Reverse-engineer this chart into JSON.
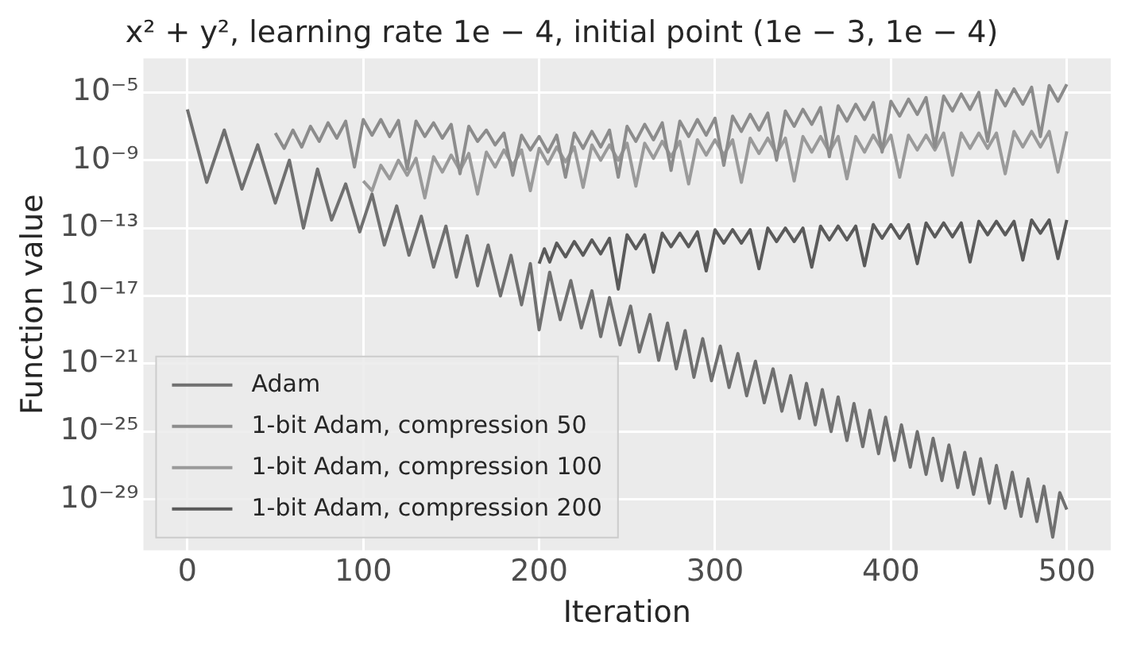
{
  "chart_data": {
    "type": "line",
    "title": "x² + y², learning rate 1e − 4, initial point (1e − 3, 1e − 4)",
    "xlabel": "Iteration",
    "ylabel": "Function value",
    "log": "y",
    "grid": true,
    "legend": "bottom left",
    "marker": "none",
    "line_style": "solid",
    "xlim": [
      -25,
      525
    ],
    "xticks": [
      0,
      100,
      200,
      300,
      400,
      500
    ],
    "ylim": [
      1e-32,
      0.001
    ],
    "yticks": [
      {
        "value": 1e-05,
        "label": "10⁻⁵"
      },
      {
        "value": 1e-09,
        "label": "10⁻⁹"
      },
      {
        "value": 1e-13,
        "label": "10⁻¹³"
      },
      {
        "value": 1e-17,
        "label": "10⁻¹⁷"
      },
      {
        "value": 1e-21,
        "label": "10⁻²¹"
      },
      {
        "value": 1e-25,
        "label": "10⁻²⁵"
      },
      {
        "value": 1e-29,
        "label": "10⁻²⁹"
      }
    ],
    "series": [
      {
        "name": "Adam",
        "color": "#707070",
        "x": [
          0,
          11,
          21,
          31,
          40,
          50,
          58,
          66,
          74,
          82,
          90,
          98,
          105,
          112,
          119,
          126,
          133,
          140,
          147,
          153,
          159,
          165,
          171,
          178,
          184,
          190,
          195,
          200,
          206,
          212,
          218,
          224,
          230,
          235,
          240,
          246,
          252,
          257,
          263,
          268,
          273,
          278,
          283,
          288,
          293,
          298,
          303,
          308,
          313,
          318,
          323,
          328,
          333,
          338,
          343,
          348,
          352,
          357,
          361,
          366,
          370,
          375,
          379,
          384,
          388,
          393,
          397,
          402,
          406,
          411,
          415,
          420,
          424,
          429,
          433,
          438,
          442,
          447,
          451,
          456,
          460,
          465,
          469,
          474,
          478,
          483,
          487,
          492,
          496,
          500
        ],
        "values": [
          1e-06,
          5e-11,
          6e-08,
          2e-11,
          8e-09,
          3e-12,
          1e-09,
          1e-13,
          3e-10,
          3e-13,
          4e-11,
          6e-14,
          1e-11,
          1e-14,
          2e-12,
          2.5e-15,
          5e-13,
          5e-16,
          1.3e-13,
          1.3e-16,
          3.5e-14,
          4e-17,
          1e-14,
          1e-17,
          2.5e-15,
          3e-18,
          8e-16,
          1e-19,
          2.5e-16,
          4e-19,
          8e-17,
          1.3e-19,
          2e-17,
          4e-20,
          8e-18,
          1.3e-20,
          2.5e-18,
          5e-21,
          8e-19,
          1.6e-21,
          2.5e-19,
          5e-22,
          9e-20,
          1.6e-22,
          3e-20,
          1e-22,
          1.1e-20,
          4e-23,
          4e-21,
          1.3e-23,
          1.4e-21,
          5e-24,
          5e-22,
          1.6e-24,
          2e-22,
          6e-25,
          7e-23,
          2.5e-25,
          3e-23,
          1e-25,
          1.1e-23,
          3e-26,
          4.5e-24,
          1.3e-26,
          1.8e-24,
          5e-27,
          7e-25,
          2e-27,
          2.5e-25,
          8e-28,
          1e-25,
          3e-28,
          4e-26,
          1.3e-28,
          1.6e-26,
          5e-29,
          6e-27,
          2e-29,
          2.5e-27,
          6e-30,
          1e-27,
          3e-30,
          4e-28,
          1e-30,
          1.6e-28,
          5e-31,
          6e-29,
          6e-32,
          2.5e-29,
          2.5e-30
        ]
      },
      {
        "name": "1-bit Adam, compression 50",
        "color": "#8c8c8c",
        "x": [
          50,
          55,
          60,
          65,
          70,
          75,
          80,
          85,
          90,
          95,
          100,
          105,
          110,
          115,
          120,
          125,
          130,
          135,
          140,
          145,
          150,
          155,
          160,
          165,
          170,
          175,
          180,
          185,
          190,
          195,
          200,
          205,
          210,
          215,
          220,
          225,
          230,
          235,
          240,
          245,
          250,
          255,
          260,
          265,
          270,
          275,
          280,
          285,
          290,
          295,
          300,
          305,
          310,
          315,
          320,
          325,
          330,
          335,
          340,
          345,
          350,
          355,
          360,
          365,
          370,
          375,
          380,
          385,
          390,
          395,
          400,
          405,
          410,
          415,
          420,
          425,
          430,
          435,
          440,
          445,
          450,
          455,
          460,
          465,
          470,
          475,
          480,
          485,
          490,
          495,
          500
        ],
        "values": [
          4e-08,
          5e-09,
          6e-08,
          6e-09,
          1e-07,
          1.3e-08,
          1.6e-07,
          2e-08,
          2e-07,
          4e-10,
          2.5e-07,
          3e-08,
          2.5e-07,
          2.5e-08,
          2.2e-07,
          3e-10,
          2e-07,
          2.5e-08,
          1.6e-07,
          2e-08,
          1.3e-07,
          1.6e-10,
          1e-07,
          1.3e-08,
          6e-08,
          8e-09,
          4e-08,
          1.3e-10,
          3e-08,
          4e-09,
          2.5e-08,
          3e-09,
          3e-08,
          1e-10,
          4e-08,
          5e-09,
          5e-08,
          6e-09,
          6e-08,
          1e-10,
          1e-07,
          1.3e-08,
          1.3e-07,
          1.6e-08,
          1.6e-07,
          2.5e-10,
          2e-07,
          2.5e-08,
          2.5e-07,
          3e-08,
          3e-07,
          5e-10,
          4e-07,
          5e-08,
          5e-07,
          6e-08,
          6e-07,
          1e-09,
          8e-07,
          1e-07,
          1e-06,
          1.3e-07,
          1.3e-06,
          1.6e-09,
          1.6e-06,
          2e-07,
          2e-06,
          2.5e-07,
          2.5e-06,
          3e-09,
          3e-06,
          4e-07,
          4e-06,
          5e-07,
          5e-06,
          6e-09,
          6e-06,
          8e-07,
          8e-06,
          1e-06,
          1e-05,
          1.3e-08,
          1.3e-05,
          1.6e-06,
          1.6e-05,
          2e-06,
          2e-05,
          2.5e-08,
          2.5e-05,
          3e-06,
          3e-05
        ]
      },
      {
        "name": "1-bit Adam, compression 100",
        "color": "#9a9a9a",
        "x": [
          100,
          105,
          110,
          115,
          120,
          125,
          130,
          135,
          140,
          145,
          150,
          155,
          160,
          165,
          170,
          175,
          180,
          185,
          190,
          195,
          200,
          205,
          210,
          215,
          220,
          225,
          230,
          235,
          240,
          245,
          250,
          255,
          260,
          265,
          270,
          275,
          280,
          285,
          290,
          295,
          300,
          305,
          310,
          315,
          320,
          325,
          330,
          335,
          340,
          345,
          350,
          355,
          360,
          365,
          370,
          375,
          380,
          385,
          390,
          395,
          400,
          405,
          410,
          415,
          420,
          425,
          430,
          435,
          440,
          445,
          450,
          455,
          460,
          465,
          470,
          475,
          480,
          485,
          490,
          495,
          500
        ],
        "values": [
          6e-11,
          1.6e-11,
          5e-10,
          8e-11,
          1e-09,
          1.3e-10,
          1.3e-09,
          6e-12,
          1.6e-09,
          2e-10,
          2e-09,
          2.5e-10,
          2.5e-09,
          1e-11,
          3e-09,
          4e-10,
          4e-09,
          5e-10,
          4e-09,
          1.6e-11,
          5e-09,
          6e-10,
          6e-09,
          8e-10,
          6e-09,
          2.5e-11,
          8e-09,
          1e-09,
          8e-09,
          1e-09,
          1e-08,
          3e-11,
          1e-08,
          1.3e-09,
          1.3e-08,
          1.6e-09,
          1.3e-08,
          4e-11,
          1.6e-08,
          2e-09,
          1.6e-08,
          2e-09,
          1.6e-08,
          5e-11,
          2e-08,
          2.5e-09,
          2e-08,
          2.5e-09,
          2e-08,
          6e-11,
          2.5e-08,
          3e-09,
          2.5e-08,
          3e-09,
          2.5e-08,
          8e-11,
          2.5e-08,
          3e-09,
          3e-08,
          4e-09,
          3e-08,
          1e-10,
          3e-08,
          4e-09,
          3e-08,
          4e-09,
          4e-08,
          1.3e-10,
          4e-08,
          5e-09,
          4e-08,
          5e-09,
          4e-08,
          1.6e-10,
          5e-08,
          6e-09,
          5e-08,
          6e-09,
          5e-08,
          2e-10,
          5e-08
        ]
      },
      {
        "name": "1-bit Adam, compression 200",
        "color": "#5a5a5a",
        "x": [
          200,
          203,
          206,
          210,
          215,
          220,
          225,
          230,
          235,
          240,
          245,
          250,
          255,
          260,
          265,
          270,
          275,
          280,
          285,
          290,
          295,
          300,
          305,
          310,
          315,
          320,
          325,
          330,
          335,
          340,
          345,
          350,
          355,
          360,
          365,
          370,
          375,
          380,
          385,
          390,
          395,
          400,
          405,
          410,
          415,
          420,
          425,
          430,
          435,
          440,
          445,
          450,
          455,
          460,
          465,
          470,
          475,
          480,
          485,
          490,
          495,
          500
        ],
        "values": [
          8e-16,
          6e-15,
          1e-15,
          1.3e-14,
          2e-15,
          1.6e-14,
          2.5e-15,
          2e-14,
          3e-15,
          2.5e-14,
          2.5e-17,
          4e-14,
          6e-15,
          4e-14,
          2.5e-16,
          5e-14,
          8e-15,
          5e-14,
          8e-15,
          6e-14,
          3e-16,
          8e-14,
          1.3e-14,
          8e-14,
          1.3e-14,
          8e-14,
          4e-16,
          1e-13,
          1.6e-14,
          1e-13,
          1.6e-14,
          1e-13,
          5e-16,
          1.3e-13,
          2e-14,
          1.3e-13,
          2e-14,
          1.3e-13,
          6e-16,
          1.6e-13,
          2.5e-14,
          1.6e-13,
          2.5e-14,
          1.6e-13,
          8e-16,
          2e-13,
          3e-14,
          2e-13,
          3e-14,
          2e-13,
          1e-15,
          2.5e-13,
          4e-14,
          2.5e-13,
          4e-14,
          2.5e-13,
          1.3e-15,
          3e-13,
          5e-14,
          3e-13,
          1.6e-15,
          3e-13
        ]
      }
    ]
  }
}
